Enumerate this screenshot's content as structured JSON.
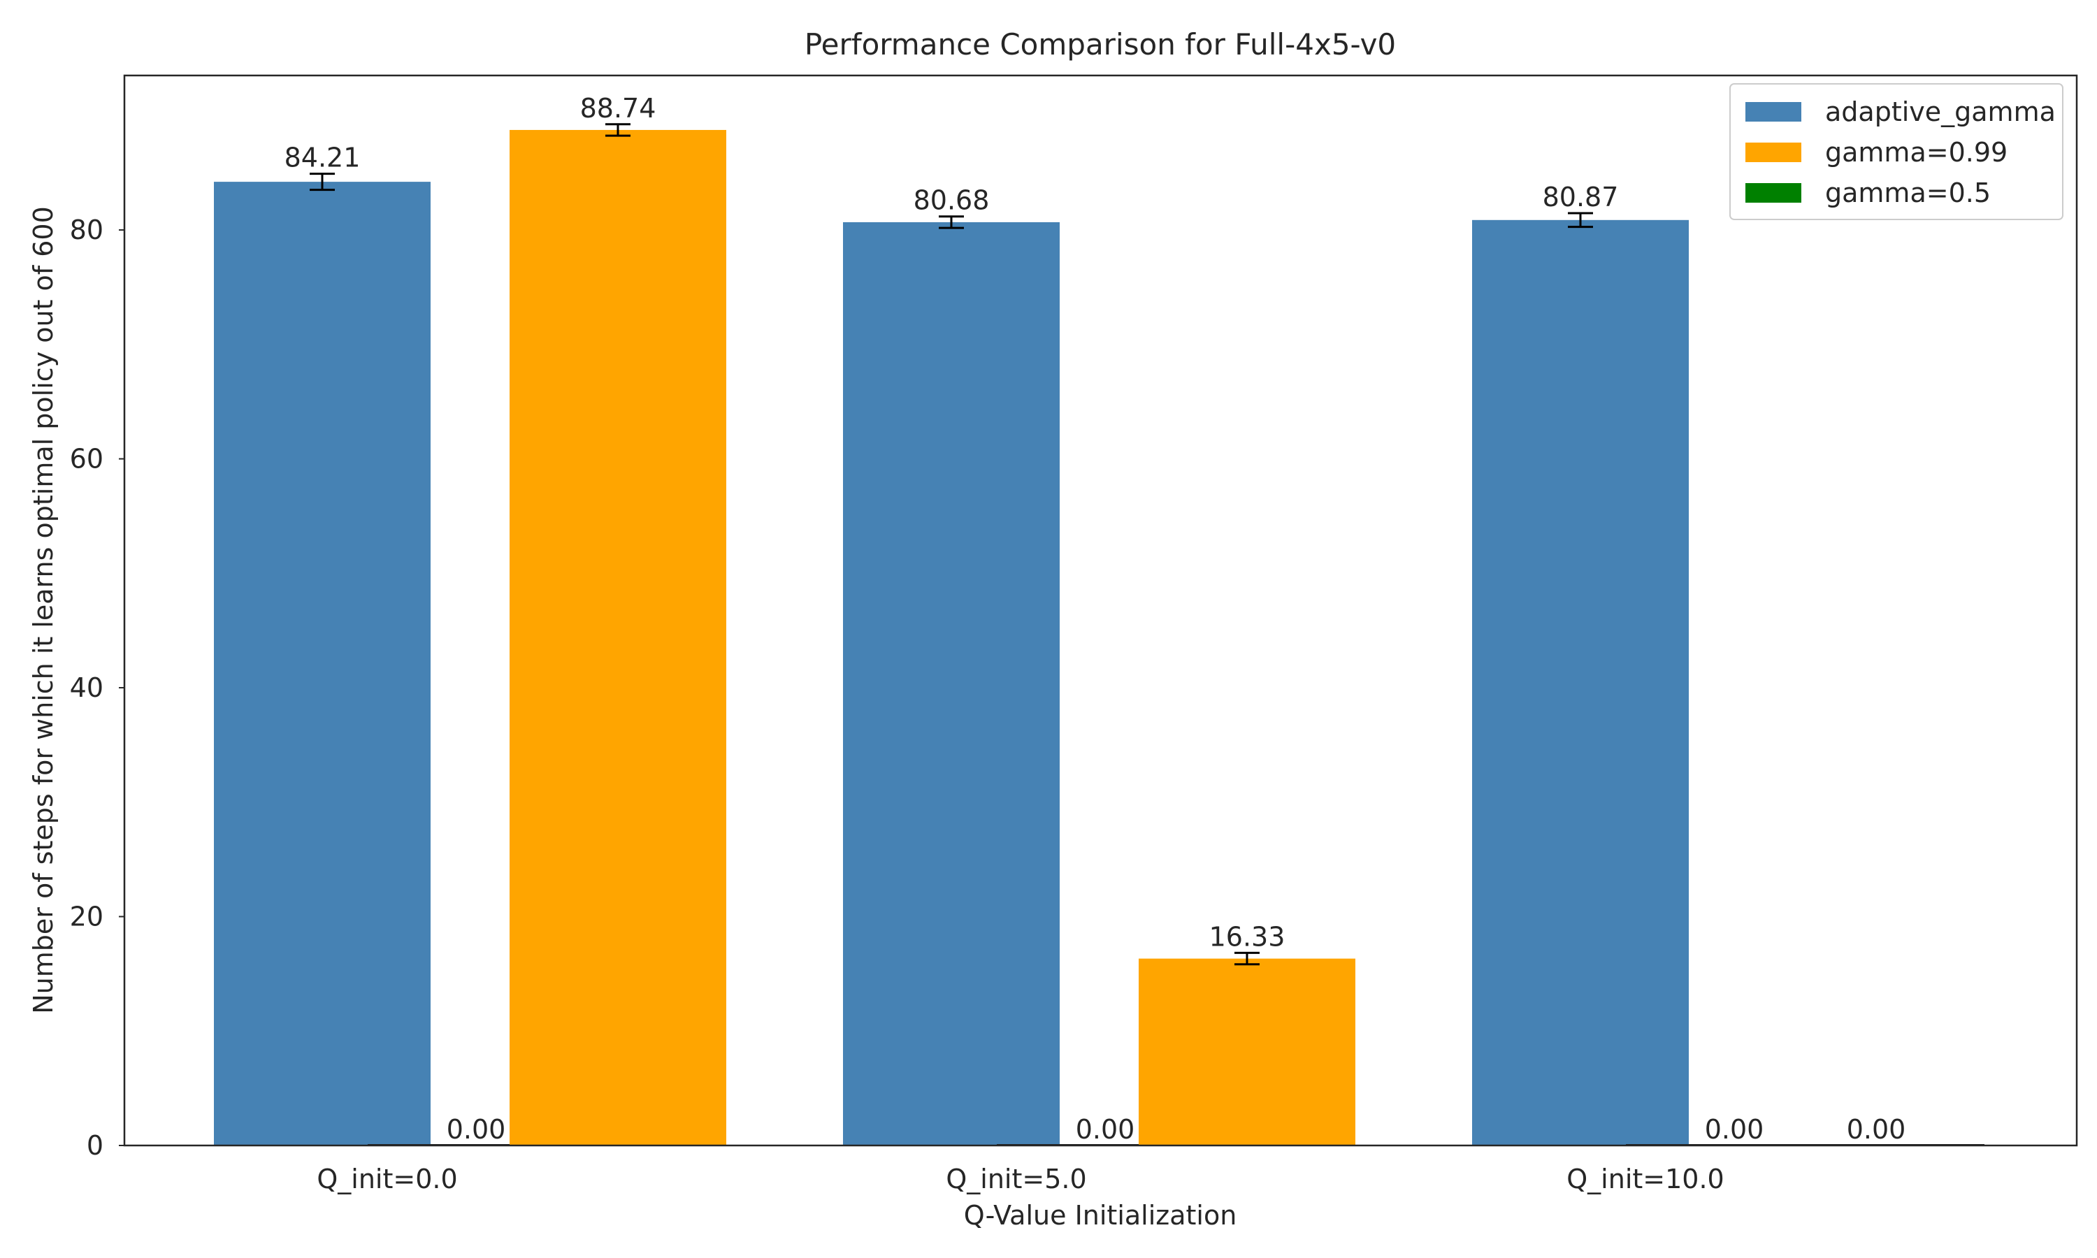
{
  "chart_data": {
    "type": "bar",
    "title": "Performance Comparison for Full-4x5-v0",
    "xlabel": "Q-Value Initialization",
    "ylabel": "Number of steps for which it learns optimal policy out of 600",
    "categories": [
      "Q_init=0.0",
      "Q_init=5.0",
      "Q_init=10.0"
    ],
    "ylim": [
      0,
      93.5
    ],
    "yticks": [
      0,
      20,
      40,
      60,
      80
    ],
    "grid": false,
    "legend_position": "top-right",
    "series": [
      {
        "name": "adaptive_gamma",
        "color": "#4682B4",
        "values": [
          84.21,
          80.68,
          80.87
        ],
        "errors": [
          0.7,
          0.5,
          0.6
        ]
      },
      {
        "name": "gamma=0.5",
        "color": "#008000",
        "values": [
          0.0,
          0.0,
          0.0
        ],
        "errors": [
          0,
          0,
          0
        ]
      },
      {
        "name": "gamma=0.99",
        "color": "#FFA500",
        "values": [
          88.74,
          16.33,
          0.0
        ],
        "errors": [
          0.5,
          0.5,
          0
        ]
      }
    ],
    "data_labels": [
      [
        "84.21",
        "80.68",
        "80.87"
      ],
      [
        "0.00",
        "0.00",
        "0.00"
      ],
      [
        "88.74",
        "16.33",
        "0.00"
      ]
    ],
    "legend_order": [
      0,
      2,
      1
    ]
  }
}
